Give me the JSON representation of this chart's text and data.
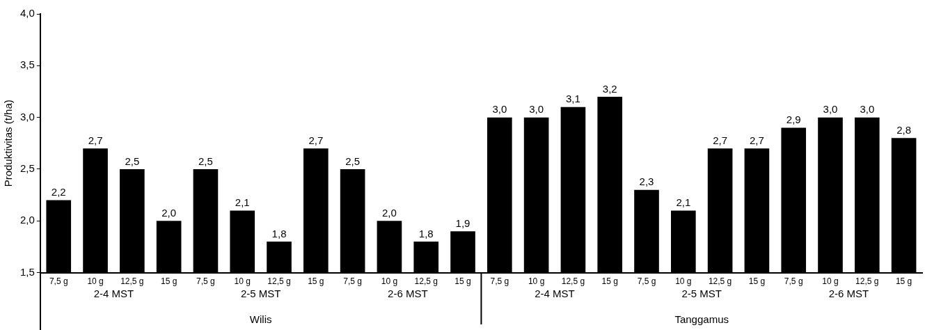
{
  "chart_data": {
    "type": "bar",
    "ylabel": "Produktivitas (t/ha)",
    "categories": [
      "7,5 g",
      "10 g",
      "12,5 g",
      "15 g",
      "7,5 g",
      "10 g",
      "12,5 g",
      "15 g",
      "7,5 g",
      "10 g",
      "12,5 g",
      "15 g",
      "7,5 g",
      "10 g",
      "12,5 g",
      "15 g",
      "7,5 g",
      "10 g",
      "12,5 g",
      "15 g",
      "7,5 g",
      "10 g",
      "12,5 g",
      "15 g"
    ],
    "values": [
      2.2,
      2.7,
      2.5,
      2.0,
      2.5,
      2.1,
      1.8,
      2.7,
      2.5,
      2.0,
      1.8,
      1.9,
      3.0,
      3.0,
      3.1,
      3.2,
      2.3,
      2.1,
      2.7,
      2.7,
      2.9,
      3.0,
      3.0,
      2.8
    ],
    "value_labels": [
      "2,2",
      "2,7",
      "2,5",
      "2,0",
      "2,5",
      "2,1",
      "1,8",
      "2,7",
      "2,5",
      "2,0",
      "1,8",
      "1,9",
      "3,0",
      "3,0",
      "3,1",
      "3,2",
      "2,3",
      "2,1",
      "2,7",
      "2,7",
      "2,9",
      "3,0",
      "3,0",
      "2,8"
    ],
    "color": "#000000",
    "ylim": [
      1.5,
      4.0
    ],
    "yticks": [
      {
        "value": 1.5,
        "label": "1,5"
      },
      {
        "value": 2.0,
        "label": "2,0"
      },
      {
        "value": 2.5,
        "label": "2,5"
      },
      {
        "value": 3.0,
        "label": "3,0"
      },
      {
        "value": 3.5,
        "label": "3,5"
      },
      {
        "value": 4.0,
        "label": "4,0"
      }
    ],
    "annotations": [
      "2-4 MST",
      "2-5 MST",
      "2-6 MST",
      "2-4 MST",
      "2-5 MST",
      "2-6 MST",
      "Wilis",
      "Tanggamus"
    ],
    "grid": false,
    "legend": false
  }
}
